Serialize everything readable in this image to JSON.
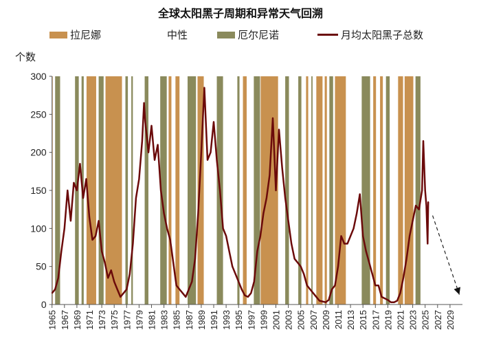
{
  "colors": {
    "la_nina": "#C8914F",
    "el_nino": "#8A8A5C",
    "sunspot": "#6B0A0A"
  },
  "chart_data": {
    "type": "line",
    "title": "全球太阳黑子周期和异常天气回溯",
    "ylabel": "个数",
    "xlabel": "",
    "ylim": [
      0,
      300
    ],
    "xlim": [
      1965,
      2031
    ],
    "yticks": [
      0,
      50,
      100,
      150,
      200,
      250,
      300
    ],
    "xticks": [
      "1965",
      "1967",
      "1969",
      "1971",
      "1973",
      "1975",
      "1977",
      "1979",
      "1981",
      "1983",
      "1985",
      "1987",
      "1989",
      "1991",
      "1993",
      "1995",
      "1997",
      "1999",
      "2001",
      "2003",
      "2005",
      "2007",
      "2009",
      "2011",
      "2013",
      "2015",
      "2017",
      "2019",
      "2021",
      "2023",
      "2025",
      "2027",
      "2029"
    ],
    "legend": [
      {
        "label": "拉尼娜",
        "kind": "band",
        "color": "#C8914F"
      },
      {
        "label": "中性",
        "kind": "none"
      },
      {
        "label": "厄尔尼诺",
        "kind": "band",
        "color": "#8A8A5C"
      },
      {
        "label": "月均太阳黑子总数",
        "kind": "line",
        "color": "#6B0A0A"
      }
    ],
    "legend_position": "top",
    "grid": false,
    "bands": {
      "la_nina": [
        [
          1965.0,
          1965.1
        ],
        [
          1970.55,
          1972.1
        ],
        [
          1973.6,
          1976.25
        ],
        [
          1983.75,
          1984.2
        ],
        [
          1984.85,
          1985.5
        ],
        [
          1988.4,
          1989.4
        ],
        [
          1995.7,
          1996.3
        ],
        [
          1998.55,
          2001.35
        ],
        [
          2005.85,
          2006.2
        ],
        [
          2007.5,
          2008.5
        ],
        [
          2008.85,
          2009.2
        ],
        [
          2010.5,
          2012.25
        ],
        [
          2016.65,
          2017.1
        ],
        [
          2017.75,
          2018.2
        ],
        [
          2020.65,
          2021.45
        ],
        [
          2021.7,
          2023.1
        ]
      ],
      "el_nino": [
        [
          1965.5,
          1966.3
        ],
        [
          1968.7,
          1969.3
        ],
        [
          1969.75,
          1970.1
        ],
        [
          1972.5,
          1973.3
        ],
        [
          1976.8,
          1977.2
        ],
        [
          1977.75,
          1978.0
        ],
        [
          1979.9,
          1980.5
        ],
        [
          1982.4,
          1983.45
        ],
        [
          1986.8,
          1988.15
        ],
        [
          1991.5,
          1992.5
        ],
        [
          1994.8,
          1995.15
        ],
        [
          1997.45,
          1998.45
        ],
        [
          2002.5,
          2003.1
        ],
        [
          2004.6,
          2005.1
        ],
        [
          2006.7,
          2006.9
        ],
        [
          2009.6,
          2010.2
        ],
        [
          2014.8,
          2016.15
        ],
        [
          2018.7,
          2019.3
        ],
        [
          2023.45,
          2024.25
        ]
      ]
    },
    "series": [
      {
        "name": "月均太阳黑子总数",
        "x": [
          1965.0,
          1965.5,
          1966.0,
          1966.5,
          1967.0,
          1967.5,
          1968.0,
          1968.5,
          1969.0,
          1969.5,
          1970.0,
          1970.5,
          1971.0,
          1971.5,
          1972.0,
          1972.5,
          1973.0,
          1973.5,
          1974.0,
          1974.5,
          1975.0,
          1975.5,
          1976.0,
          1976.5,
          1977.0,
          1977.5,
          1978.0,
          1978.5,
          1979.0,
          1979.5,
          1979.8,
          1980.0,
          1980.5,
          1981.0,
          1981.5,
          1982.0,
          1982.5,
          1983.0,
          1983.5,
          1984.0,
          1984.5,
          1985.0,
          1985.5,
          1986.0,
          1986.5,
          1987.0,
          1987.5,
          1988.0,
          1988.5,
          1989.0,
          1989.5,
          1990.0,
          1990.5,
          1991.0,
          1991.5,
          1992.0,
          1992.5,
          1993.0,
          1993.5,
          1994.0,
          1994.5,
          1995.0,
          1995.5,
          1996.0,
          1996.5,
          1997.0,
          1997.5,
          1998.0,
          1998.5,
          1999.0,
          1999.5,
          2000.0,
          2000.5,
          2001.0,
          2001.5,
          2002.0,
          2002.5,
          2003.0,
          2003.5,
          2004.0,
          2004.5,
          2005.0,
          2005.5,
          2006.0,
          2006.5,
          2007.0,
          2007.5,
          2008.0,
          2008.5,
          2009.0,
          2009.5,
          2010.0,
          2010.5,
          2011.0,
          2011.5,
          2012.0,
          2012.5,
          2013.0,
          2013.5,
          2014.0,
          2014.5,
          2015.0,
          2015.5,
          2016.0,
          2016.5,
          2017.0,
          2017.5,
          2018.0,
          2018.5,
          2019.0,
          2019.5,
          2020.0,
          2020.5,
          2021.0,
          2021.5,
          2022.0,
          2022.5,
          2023.0,
          2023.5,
          2024.0,
          2024.5,
          2024.7,
          2025.0,
          2025.2,
          2025.4,
          2025.5
        ],
        "values": [
          15,
          20,
          35,
          70,
          100,
          150,
          110,
          160,
          150,
          185,
          140,
          165,
          115,
          85,
          90,
          110,
          70,
          55,
          35,
          45,
          30,
          20,
          10,
          15,
          20,
          40,
          80,
          140,
          165,
          215,
          265,
          240,
          200,
          235,
          190,
          210,
          150,
          120,
          100,
          85,
          55,
          25,
          20,
          15,
          10,
          20,
          30,
          60,
          120,
          200,
          285,
          190,
          200,
          240,
          190,
          150,
          100,
          90,
          70,
          50,
          40,
          30,
          20,
          12,
          10,
          15,
          30,
          70,
          90,
          120,
          140,
          170,
          245,
          150,
          230,
          180,
          140,
          110,
          80,
          60,
          55,
          50,
          40,
          25,
          20,
          15,
          10,
          5,
          4,
          3,
          6,
          20,
          25,
          50,
          90,
          80,
          80,
          90,
          100,
          120,
          145,
          90,
          70,
          55,
          40,
          25,
          25,
          10,
          8,
          6,
          3,
          3,
          5,
          15,
          35,
          60,
          90,
          110,
          130,
          125,
          150,
          215,
          150,
          130,
          80,
          135
        ]
      }
    ],
    "annotation": {
      "type": "dashed-arrow",
      "from": [
        2026.2,
        117
      ],
      "to": [
        2030.5,
        13
      ]
    }
  }
}
